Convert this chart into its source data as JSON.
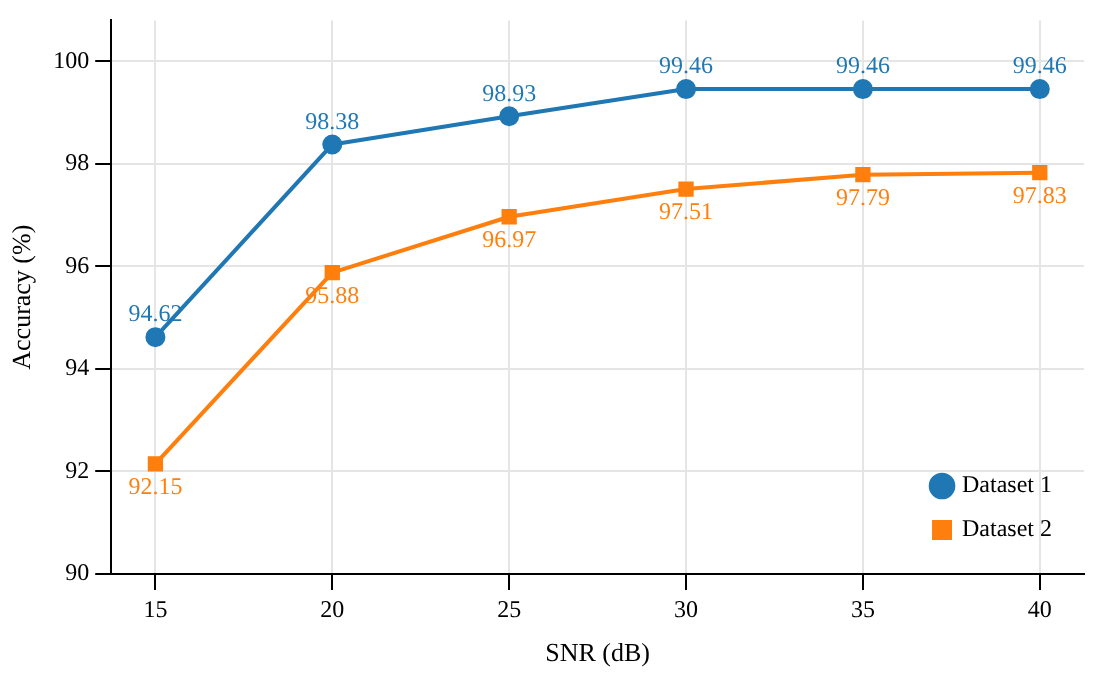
{
  "chart_data": {
    "type": "line",
    "xlabel": "SNR (dB)",
    "ylabel": "Accuracy (%)",
    "x": [
      15,
      20,
      25,
      30,
      35,
      40
    ],
    "series": [
      {
        "name": "Dataset 1",
        "color": "#1f77b4",
        "marker": "circle",
        "values": [
          94.62,
          98.38,
          98.93,
          99.46,
          99.46,
          99.46
        ]
      },
      {
        "name": "Dataset 2",
        "color": "#ff7f0e",
        "marker": "square",
        "values": [
          92.15,
          95.88,
          96.97,
          97.51,
          97.79,
          97.83
        ]
      }
    ],
    "xlim": [
      13.75,
      41.25
    ],
    "xticks": [
      15,
      20,
      25,
      30,
      35,
      40
    ],
    "ylim": [
      90,
      100.8
    ],
    "yticks": [
      90,
      92,
      94,
      96,
      98,
      100
    ],
    "grid": true,
    "legend": "bottom right",
    "data_labels": true,
    "line_style": "solid"
  }
}
